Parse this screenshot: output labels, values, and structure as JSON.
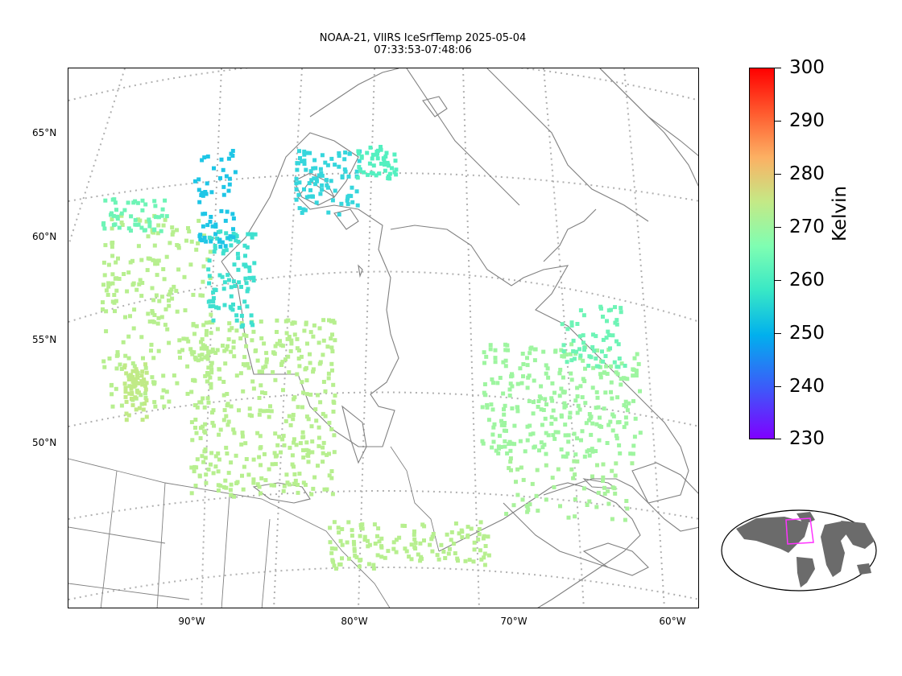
{
  "title": {
    "line1": "NOAA-21, VIIRS IceSrfTemp 2025-05-04",
    "line2": "07:33:53-07:48:06"
  },
  "map": {
    "lat_labels": [
      "65°N",
      "60°N",
      "55°N",
      "50°N"
    ],
    "lon_labels": [
      "90°W",
      "80°W",
      "70°W",
      "60°W"
    ],
    "coastline_color": "#808080",
    "graticule_color": "#b0b0b0"
  },
  "colorbar": {
    "ticks": [
      "300",
      "290",
      "280",
      "270",
      "260",
      "250",
      "240",
      "230"
    ],
    "label": "Kelvin",
    "range": [
      230,
      300
    ],
    "colormap": "rainbow"
  },
  "inset": {
    "land_color": "#6b6b6b",
    "highlight_color": "#ff33ff"
  }
}
